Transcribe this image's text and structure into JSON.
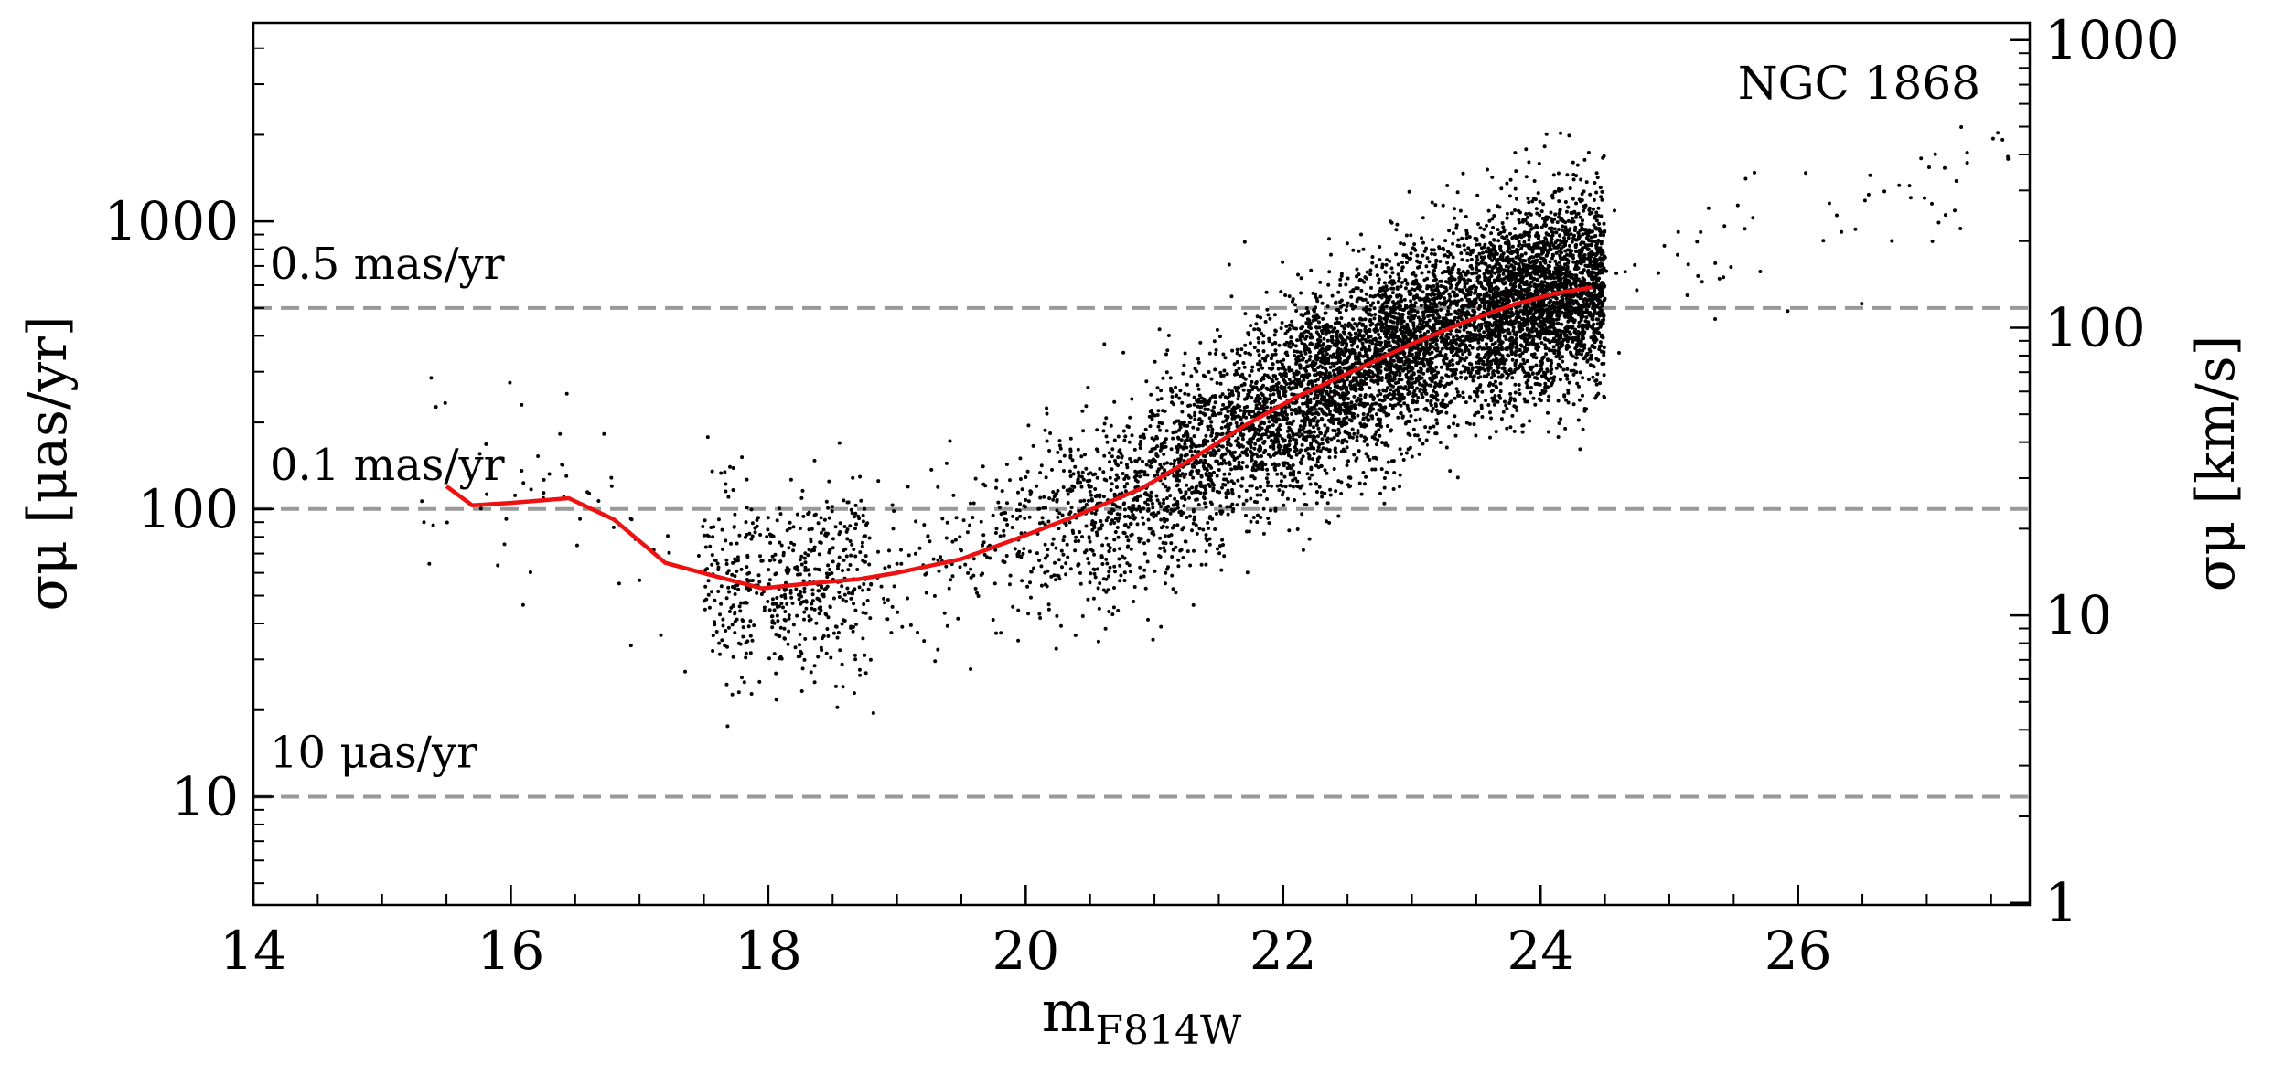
{
  "chart_data": {
    "type": "scatter",
    "annotation": "NGC 1868",
    "x_axis": {
      "label_main": "m",
      "label_sub": "F814W",
      "range": [
        14,
        27.8
      ],
      "ticks": [
        14,
        16,
        18,
        20,
        22,
        24,
        26
      ],
      "tick_labels": [
        "14",
        "16",
        "18",
        "20",
        "22",
        "24",
        "26"
      ]
    },
    "y_axis_left": {
      "label": "σμ [μas/yr]",
      "scale": "log",
      "range": [
        4.2,
        4900
      ],
      "ticks": [
        10,
        100,
        1000
      ],
      "tick_labels": [
        "10",
        "100",
        "1000"
      ]
    },
    "y_axis_right": {
      "label": "σμ [km/s]",
      "scale": "log",
      "ticks": [
        1,
        10,
        100,
        1000
      ],
      "tick_labels": [
        "1",
        "10",
        "100",
        "1000"
      ]
    },
    "reference_lines": [
      {
        "value": 500,
        "label": "0.5 mas/yr",
        "color": "#999999",
        "style": "dashed"
      },
      {
        "value": 100,
        "label": "0.1 mas/yr",
        "color": "#999999",
        "style": "dashed"
      },
      {
        "value": 10,
        "label": "10 μas/yr",
        "color": "#999999",
        "style": "dashed"
      }
    ],
    "median_line": {
      "color": "#ee1111",
      "points": [
        [
          15.5,
          120
        ],
        [
          15.7,
          103
        ],
        [
          16.0,
          105
        ],
        [
          16.45,
          109
        ],
        [
          16.8,
          92
        ],
        [
          17.2,
          65
        ],
        [
          17.55,
          59
        ],
        [
          17.95,
          53
        ],
        [
          18.3,
          55
        ],
        [
          18.7,
          57
        ],
        [
          19.0,
          60
        ],
        [
          19.5,
          67
        ],
        [
          19.9,
          78
        ],
        [
          20.4,
          95
        ],
        [
          20.9,
          118
        ],
        [
          21.3,
          150
        ],
        [
          21.7,
          195
        ],
        [
          22.1,
          245
        ],
        [
          22.6,
          310
        ],
        [
          23.0,
          375
        ],
        [
          23.4,
          445
        ],
        [
          23.8,
          515
        ],
        [
          24.1,
          560
        ],
        [
          24.4,
          590
        ]
      ]
    },
    "scatter_model": {
      "description_points": "dense black dot cloud around the median line, ~8000 stars",
      "color": "#000000",
      "count": 8000,
      "x_range": [
        15.3,
        27.7
      ],
      "dense_x_range": [
        17.6,
        24.4
      ],
      "peak_magnitude": 23.0,
      "spread_dex": 0.17
    }
  }
}
